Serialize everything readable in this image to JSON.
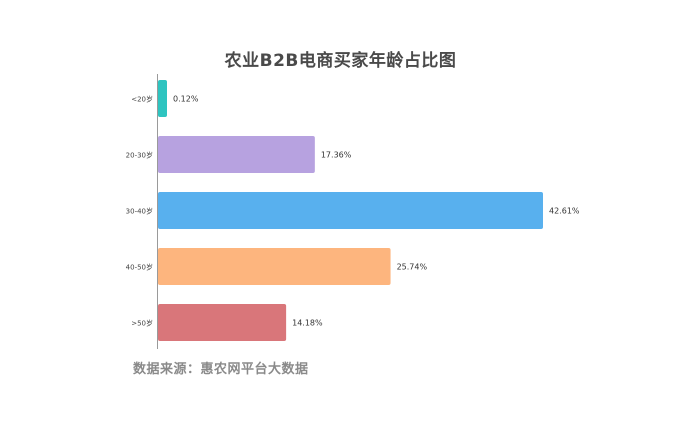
{
  "chart_data": {
    "type": "bar",
    "orientation": "horizontal",
    "title": "农业B2B电商买家年龄占比图",
    "source": "数据来源：惠农网平台大数据",
    "categories": [
      "<20岁",
      "20-30岁",
      "30-40岁",
      "40-50岁",
      ">50岁"
    ],
    "values": [
      0.12,
      17.36,
      42.61,
      25.74,
      14.18
    ],
    "value_labels": [
      "0.12%",
      "17.36%",
      "42.61%",
      "25.74%",
      "14.18%"
    ],
    "colors": [
      "#2ec4c0",
      "#b7a2e0",
      "#58b0ee",
      "#fdb57e",
      "#d9767a"
    ],
    "xlim": [
      0,
      42.61
    ],
    "grid": false,
    "legend": "none"
  }
}
